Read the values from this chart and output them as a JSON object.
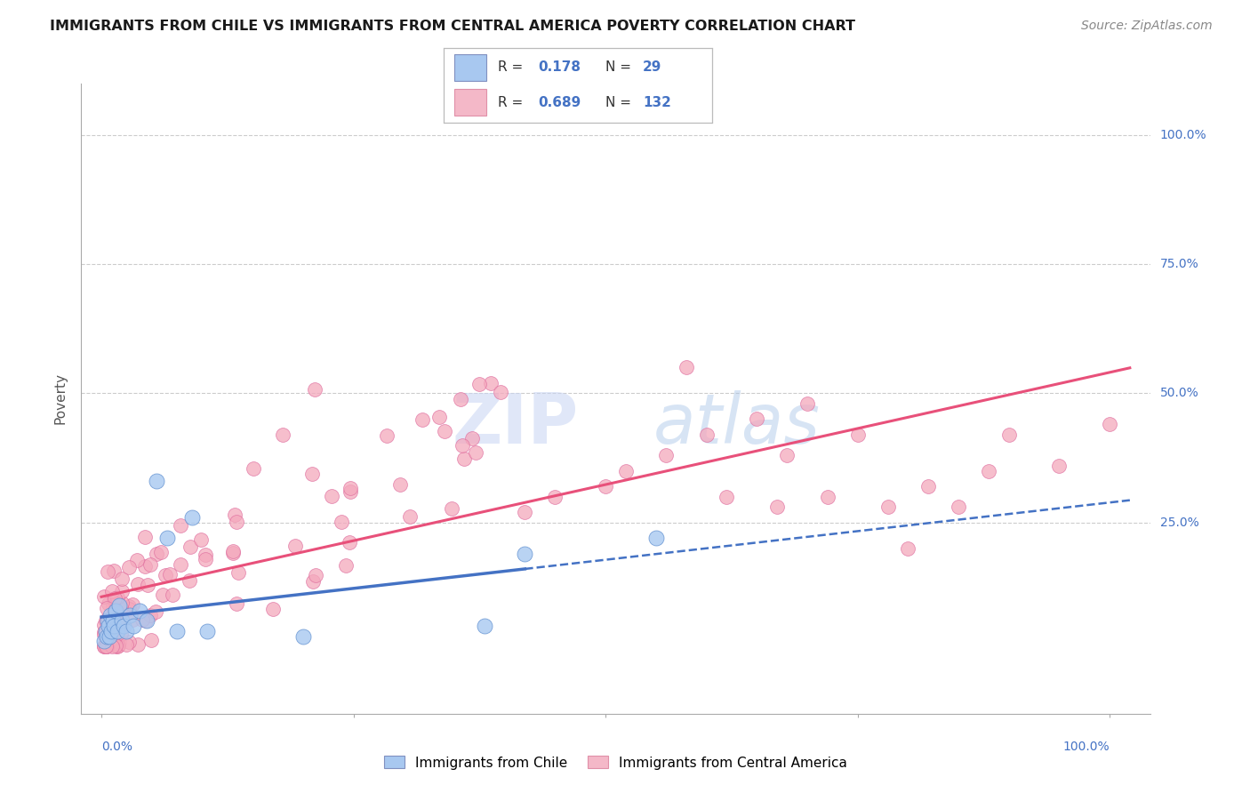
{
  "title": "IMMIGRANTS FROM CHILE VS IMMIGRANTS FROM CENTRAL AMERICA POVERTY CORRELATION CHART",
  "source": "Source: ZipAtlas.com",
  "ylabel": "Poverty",
  "chile_color": "#A8C8F0",
  "chile_edge_color": "#6090D0",
  "central_color": "#F4A8BC",
  "central_edge_color": "#E070A0",
  "chile_line_color": "#4472C4",
  "central_line_color": "#E8507A",
  "watermark_zip": "ZIP",
  "watermark_atlas": "atlas",
  "watermark_color_zip": "#C8D4F0",
  "watermark_color_atlas": "#A8C0E8",
  "legend_r1": "0.178",
  "legend_n1": "29",
  "legend_r2": "0.689",
  "legend_n2": "132",
  "ytick_labels": [
    "25.0%",
    "50.0%",
    "75.0%",
    "100.0%"
  ],
  "ytick_vals": [
    0.25,
    0.5,
    0.75,
    1.0
  ],
  "right_label_color": "#4472C4",
  "grid_color": "#CCCCCC",
  "axis_color": "#AAAAAA"
}
